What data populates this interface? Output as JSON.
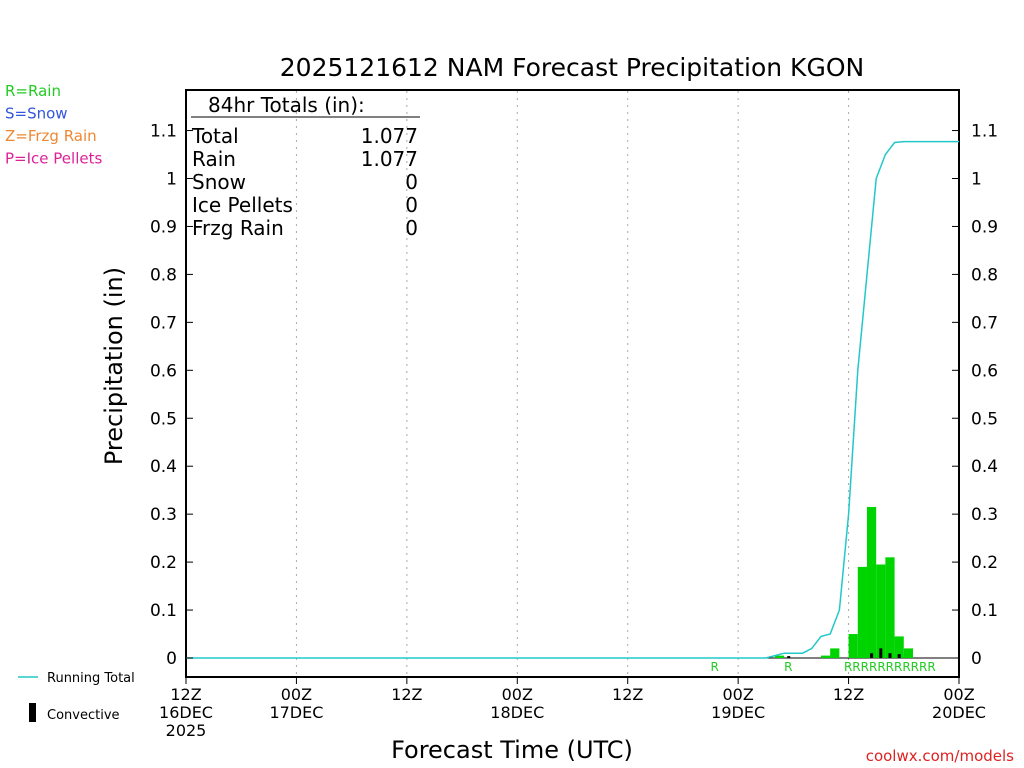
{
  "chart_data": {
    "type": "bar",
    "title": "2025121612 NAM Forecast Precipitation KGON",
    "xlabel": "Forecast Time (UTC)",
    "ylabel": "Precipitation (in)",
    "ylim": [
      0,
      1.2
    ],
    "yticks": [
      "0",
      "0.1",
      "0.2",
      "0.3",
      "0.4",
      "0.5",
      "0.6",
      "0.7",
      "0.8",
      "0.9",
      "1",
      "1.1"
    ],
    "ytick_values": [
      0,
      0.1,
      0.2,
      0.3,
      0.4,
      0.5,
      0.6,
      0.7,
      0.8,
      0.9,
      1.0,
      1.1
    ],
    "xlim_hours": [
      0,
      84
    ],
    "xticks": [
      {
        "hour": 0,
        "line1": "12Z",
        "line2": "16DEC",
        "line3": "2025"
      },
      {
        "hour": 12,
        "line1": "00Z",
        "line2": "17DEC",
        "line3": ""
      },
      {
        "hour": 24,
        "line1": "12Z",
        "line2": "",
        "line3": ""
      },
      {
        "hour": 36,
        "line1": "00Z",
        "line2": "18DEC",
        "line3": ""
      },
      {
        "hour": 48,
        "line1": "12Z",
        "line2": "",
        "line3": ""
      },
      {
        "hour": 60,
        "line1": "00Z",
        "line2": "19DEC",
        "line3": ""
      },
      {
        "hour": 72,
        "line1": "12Z",
        "line2": "",
        "line3": ""
      },
      {
        "hour": 84,
        "line1": "00Z",
        "line2": "20DEC",
        "line3": ""
      }
    ],
    "precip_bars": [
      {
        "hour": 64,
        "value": 0.005
      },
      {
        "hour": 69,
        "value": 0.005
      },
      {
        "hour": 70,
        "value": 0.02
      },
      {
        "hour": 72,
        "value": 0.05
      },
      {
        "hour": 73,
        "value": 0.19
      },
      {
        "hour": 74,
        "value": 0.315
      },
      {
        "hour": 75,
        "value": 0.195
      },
      {
        "hour": 76,
        "value": 0.21
      },
      {
        "hour": 77,
        "value": 0.045
      },
      {
        "hour": 78,
        "value": 0.02
      }
    ],
    "convective_bars": [
      {
        "hour": 65,
        "value": 0.004
      },
      {
        "hour": 74,
        "value": 0.01
      },
      {
        "hour": 75,
        "value": 0.02
      },
      {
        "hour": 76,
        "value": 0.01
      },
      {
        "hour": 77,
        "value": 0.008
      }
    ],
    "running_total": [
      {
        "hour": 0,
        "value": 0
      },
      {
        "hour": 63,
        "value": 0
      },
      {
        "hour": 64,
        "value": 0.005
      },
      {
        "hour": 65,
        "value": 0.01
      },
      {
        "hour": 67,
        "value": 0.01
      },
      {
        "hour": 68,
        "value": 0.02
      },
      {
        "hour": 69,
        "value": 0.045
      },
      {
        "hour": 70,
        "value": 0.05
      },
      {
        "hour": 71,
        "value": 0.1
      },
      {
        "hour": 72,
        "value": 0.3
      },
      {
        "hour": 73,
        "value": 0.6
      },
      {
        "hour": 74,
        "value": 0.8
      },
      {
        "hour": 75,
        "value": 1.0
      },
      {
        "hour": 76,
        "value": 1.05
      },
      {
        "hour": 77,
        "value": 1.075
      },
      {
        "hour": 78,
        "value": 1.077
      },
      {
        "hour": 84,
        "value": 1.077
      }
    ],
    "ptype_markers": [
      {
        "hour": 57,
        "text": "R"
      },
      {
        "hour": 65,
        "text": "R"
      },
      {
        "hour": 71.5,
        "text": "RRRRRRRRRRR"
      }
    ],
    "totals_box": {
      "header": "84hr Totals (in):",
      "rows": [
        {
          "label": "Total",
          "value": "1.077"
        },
        {
          "label": "Rain",
          "value": "1.077"
        },
        {
          "label": "Snow",
          "value": "0"
        },
        {
          "label": "Ice Pellets",
          "value": "0"
        },
        {
          "label": "Frzg Rain",
          "value": "0"
        }
      ]
    },
    "ptype_legend": [
      {
        "text": "R=Rain",
        "color": "#22cc22"
      },
      {
        "text": "S=Snow",
        "color": "#3355dd"
      },
      {
        "text": "Z=Frzg Rain",
        "color": "#ee8833"
      },
      {
        "text": "P=Ice Pellets",
        "color": "#dd2299"
      }
    ],
    "series_legend": [
      {
        "name": "Running Total",
        "kind": "line"
      },
      {
        "name": "Convective",
        "kind": "bar"
      }
    ],
    "colors": {
      "precip": "#00d400",
      "convective": "#000000",
      "running_total": "#22c8c8",
      "grid": "#aaaaaa",
      "ptype_text": "#22cc22",
      "credit": "#dd2222"
    },
    "grid": "vertical-dotted",
    "credit": "coolwx.com/models"
  }
}
